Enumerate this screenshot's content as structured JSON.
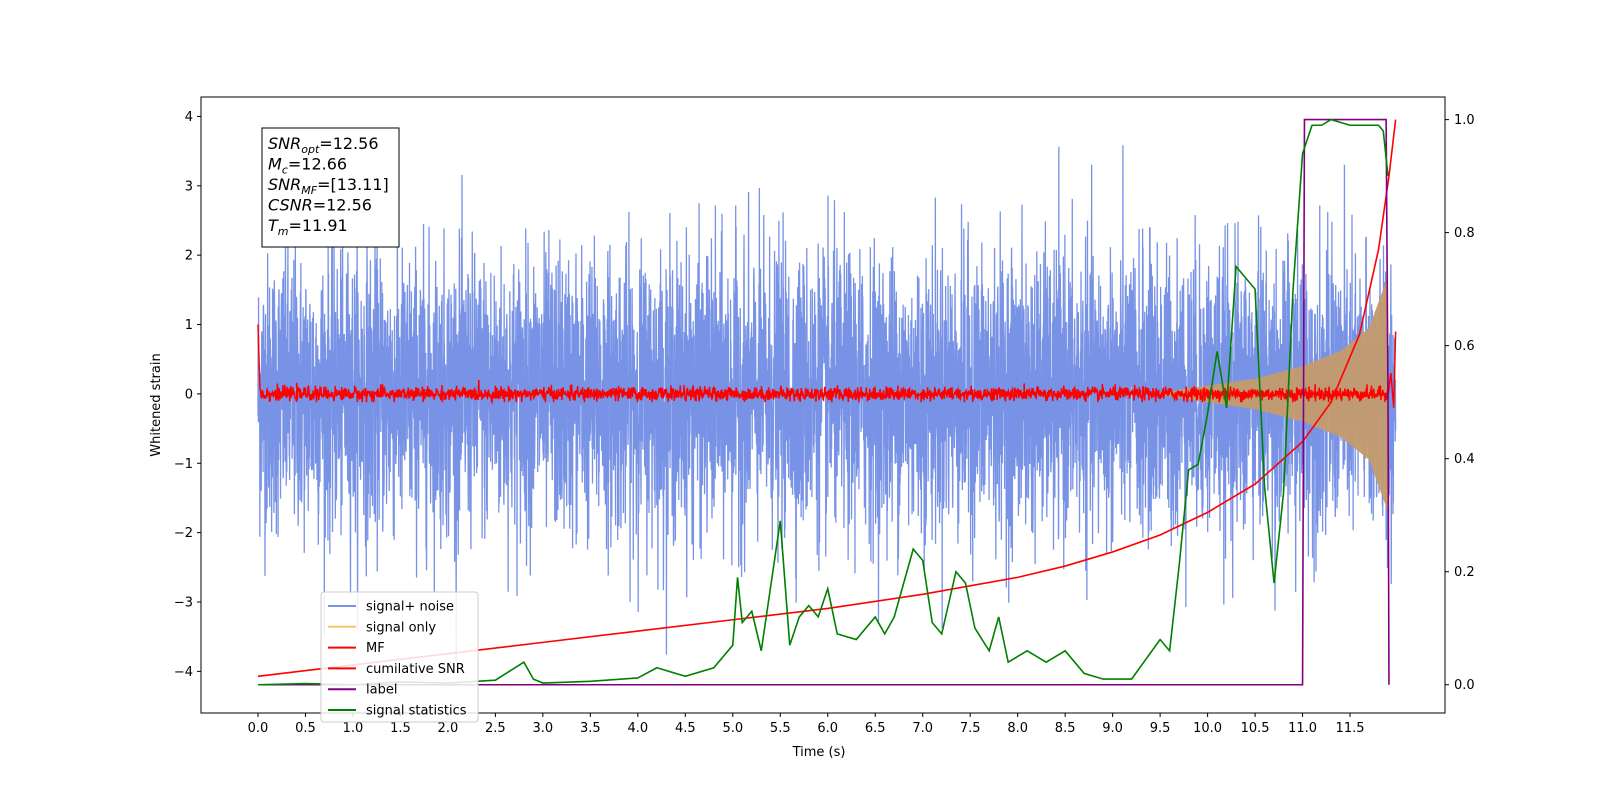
{
  "chart_data": {
    "type": "line",
    "title": "",
    "xlabel": "Time (s)",
    "ylabel": "Whitened strain",
    "xlim": [
      -0.6,
      12.5
    ],
    "ylim": [
      -4.6,
      4.28
    ],
    "y2lim": [
      -0.05,
      1.04
    ],
    "xticks": [
      "0.0",
      "0.5",
      "1.0",
      "1.5",
      "2.0",
      "2.5",
      "3.0",
      "3.5",
      "4.0",
      "4.5",
      "5.0",
      "5.5",
      "6.0",
      "6.5",
      "7.0",
      "7.5",
      "8.0",
      "8.5",
      "9.0",
      "9.5",
      "10.0",
      "10.5",
      "11.0",
      "11.5"
    ],
    "yticks": [
      "4",
      "3",
      "2",
      "1",
      "0",
      "−1",
      "−2",
      "−3",
      "−4"
    ],
    "y2ticks": [
      "1.0",
      "0.8",
      "0.6",
      "0.4",
      "0.2",
      "0.0"
    ],
    "annotation": {
      "lines": [
        {
          "base": "SNR",
          "sub": "opt",
          "rest": "=12.56"
        },
        {
          "base": "M",
          "sub": "c",
          "rest": "=12.66"
        },
        {
          "base": "SNR",
          "sub": "MF",
          "rest": "=[13.11]"
        },
        {
          "base": "CSNR",
          "sub": "",
          "rest": "=12.56"
        },
        {
          "base": "T",
          "sub": "m",
          "rest": "=11.91"
        }
      ]
    },
    "legend": {
      "placement": "lower-left",
      "entries": [
        {
          "label": "signal+ noise",
          "color": "#7893e6"
        },
        {
          "label": "signal only",
          "color": "#f5c36e"
        },
        {
          "label": "MF",
          "color": "#ff0000"
        },
        {
          "label": "cumilative SNR",
          "color": "#ff0000"
        },
        {
          "label": "label",
          "color": "#800080"
        },
        {
          "label": "signal statistics",
          "color": "#008000"
        }
      ]
    },
    "series": [
      {
        "name": "signal+ noise",
        "axis": "left",
        "color": "#7893e6",
        "description_values": {
          "mean": 0,
          "std": 1.0,
          "t_start": 0.0,
          "t_end": 11.98
        }
      },
      {
        "name": "signal only",
        "axis": "left",
        "color": "#c49a6c",
        "envelope": [
          [
            9.5,
            0.02
          ],
          [
            10.0,
            0.12
          ],
          [
            10.5,
            0.22
          ],
          [
            11.0,
            0.4
          ],
          [
            11.4,
            0.62
          ],
          [
            11.7,
            0.95
          ],
          [
            11.9,
            1.7
          ]
        ]
      },
      {
        "name": "MF",
        "axis": "left",
        "color": "#ff0000",
        "mean": 0,
        "std": 0.05
      },
      {
        "name": "cumilative SNR",
        "axis": "right",
        "color": "#ff0000",
        "x": [
          0.0,
          1.0,
          2.0,
          3.0,
          4.0,
          5.0,
          6.0,
          7.0,
          8.0,
          8.5,
          9.0,
          9.5,
          10.0,
          10.5,
          11.0,
          11.3,
          11.6,
          11.8,
          11.91,
          11.98
        ],
        "y": [
          0.015,
          0.035,
          0.055,
          0.075,
          0.095,
          0.115,
          0.135,
          0.16,
          0.19,
          0.21,
          0.235,
          0.265,
          0.305,
          0.355,
          0.43,
          0.5,
          0.62,
          0.77,
          0.9,
          1.0
        ]
      },
      {
        "name": "label",
        "axis": "right",
        "color": "#800080",
        "x": [
          0.0,
          11.0,
          11.02,
          11.88,
          11.9,
          11.91
        ],
        "y": [
          0.0,
          0.0,
          1.0,
          1.0,
          0.5,
          0.0
        ]
      },
      {
        "name": "signal statistics",
        "axis": "right",
        "color": "#008000",
        "x": [
          0.0,
          0.5,
          1.0,
          1.5,
          2.0,
          2.5,
          2.8,
          2.9,
          3.0,
          3.5,
          4.0,
          4.2,
          4.5,
          4.8,
          5.0,
          5.05,
          5.1,
          5.2,
          5.3,
          5.5,
          5.55,
          5.6,
          5.7,
          5.8,
          5.9,
          6.0,
          6.1,
          6.3,
          6.5,
          6.6,
          6.7,
          6.9,
          7.0,
          7.1,
          7.2,
          7.35,
          7.45,
          7.55,
          7.7,
          7.8,
          7.9,
          8.0,
          8.1,
          8.3,
          8.5,
          8.7,
          8.9,
          9.0,
          9.2,
          9.5,
          9.6,
          9.7,
          9.8,
          9.9,
          10.0,
          10.1,
          10.2,
          10.3,
          10.4,
          10.5,
          10.6,
          10.7,
          10.8,
          10.9,
          11.0,
          11.1,
          11.2,
          11.3,
          11.5,
          11.8,
          11.85,
          11.9
        ],
        "y": [
          0.0,
          0.002,
          0.0,
          0.005,
          0.003,
          0.008,
          0.04,
          0.01,
          0.003,
          0.006,
          0.012,
          0.03,
          0.015,
          0.03,
          0.07,
          0.19,
          0.11,
          0.13,
          0.06,
          0.29,
          0.18,
          0.07,
          0.12,
          0.14,
          0.12,
          0.17,
          0.09,
          0.08,
          0.12,
          0.09,
          0.12,
          0.24,
          0.22,
          0.11,
          0.09,
          0.2,
          0.18,
          0.1,
          0.06,
          0.12,
          0.04,
          0.05,
          0.06,
          0.04,
          0.06,
          0.02,
          0.01,
          0.01,
          0.01,
          0.08,
          0.06,
          0.21,
          0.38,
          0.39,
          0.48,
          0.59,
          0.49,
          0.74,
          0.72,
          0.7,
          0.35,
          0.18,
          0.34,
          0.7,
          0.94,
          0.99,
          0.99,
          1.0,
          0.99,
          0.99,
          0.98,
          0.9
        ]
      }
    ]
  }
}
